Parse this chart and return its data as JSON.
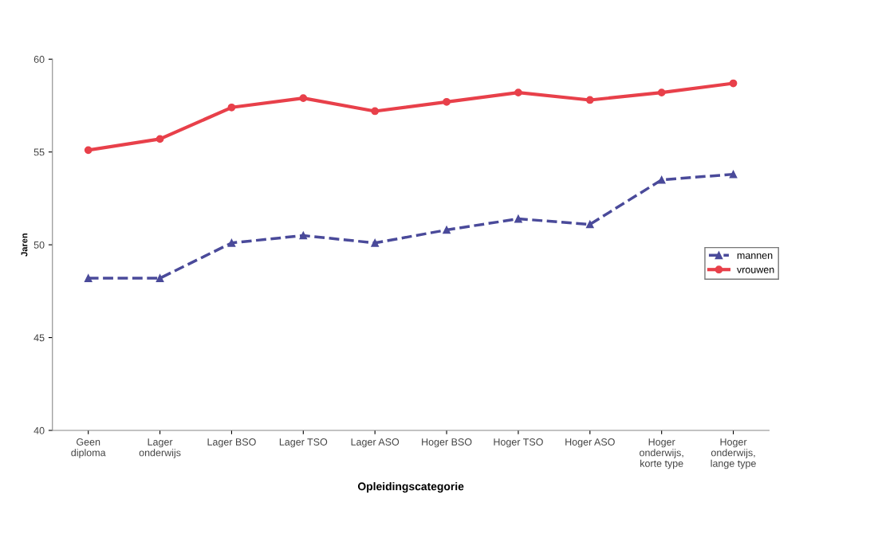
{
  "chart_data": {
    "type": "line",
    "xlabel": "Opleidingscategorie",
    "ylabel": "Jaren",
    "categories": [
      "Geen\ndiploma",
      "Lager\nonderwijs",
      "Lager BSO",
      "Lager TSO",
      "Lager ASO",
      "Hoger BSO",
      "Hoger TSO",
      "Hoger ASO",
      "Hoger\nonderwijs,\nkorte type",
      "Hoger\nonderwijs,\nlange type"
    ],
    "series": [
      {
        "name": "mannen",
        "color": "#4a4a9a",
        "line_style": "dashed",
        "marker": "triangle",
        "values": [
          48.2,
          48.2,
          50.1,
          50.5,
          50.1,
          50.8,
          51.4,
          51.1,
          53.5,
          53.8
        ]
      },
      {
        "name": "vrouwen",
        "color": "#e8404a",
        "line_style": "solid",
        "marker": "circle",
        "values": [
          55.1,
          55.7,
          57.4,
          57.9,
          57.2,
          57.7,
          58.2,
          57.8,
          58.2,
          58.7
        ]
      }
    ],
    "ylim": [
      40,
      60
    ],
    "yticks": [
      40,
      45,
      50,
      55,
      60
    ],
    "grid": false,
    "legend": "right"
  }
}
